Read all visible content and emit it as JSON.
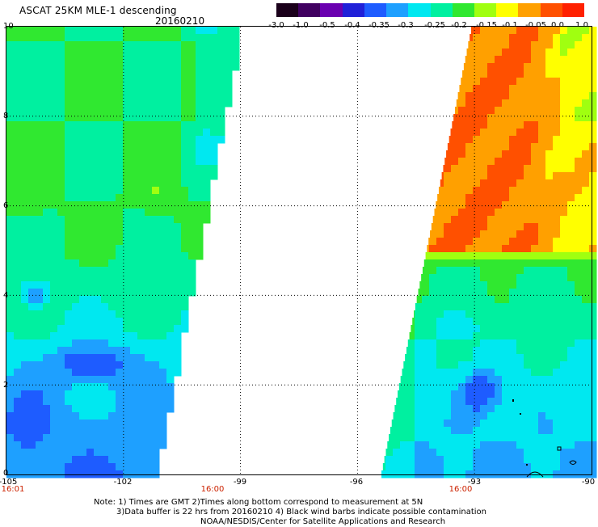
{
  "header": {
    "title": "ASCAT 25KM MLE-1 descending",
    "date": "20160210"
  },
  "colorbar": {
    "labels": [
      "-3.0",
      "-1.0",
      "-0.5",
      "-0.4",
      "-0.35",
      "-0.3",
      "-0.25",
      "-0.2",
      "-0.15",
      "-0.1",
      "-0.05",
      "0.0",
      "1.0"
    ],
    "colors": [
      "#1a001a",
      "#400060",
      "#6a00b0",
      "#2020d8",
      "#1e5cff",
      "#1ea0ff",
      "#00e8f0",
      "#00f0a0",
      "#30e830",
      "#a0ff10",
      "#ffff00",
      "#ffa000",
      "#ff5000",
      "#ff2000"
    ]
  },
  "axes": {
    "x_ticks": [
      "-105",
      "-102",
      "-99",
      "-96",
      "-93",
      "-90"
    ],
    "y_ticks": [
      "10",
      "8",
      "6",
      "4",
      "2",
      "0"
    ],
    "x_range": [
      -105,
      -90
    ],
    "y_range": [
      0,
      10
    ],
    "gridlines": "dotted"
  },
  "time_labels": {
    "start": "16:01",
    "swath1": "16:00",
    "swath2": "16:00"
  },
  "notes": {
    "line1": "Note: 1) Times are GMT 2)Times along bottom correspond to measurement at 5N",
    "line2": "3)Data buffer is 22 hrs from 20160210 4) Black wind barbs indicate possible contamination",
    "line3": "NOAA/NESDIS/Center for Satellite Applications and Research"
  }
}
